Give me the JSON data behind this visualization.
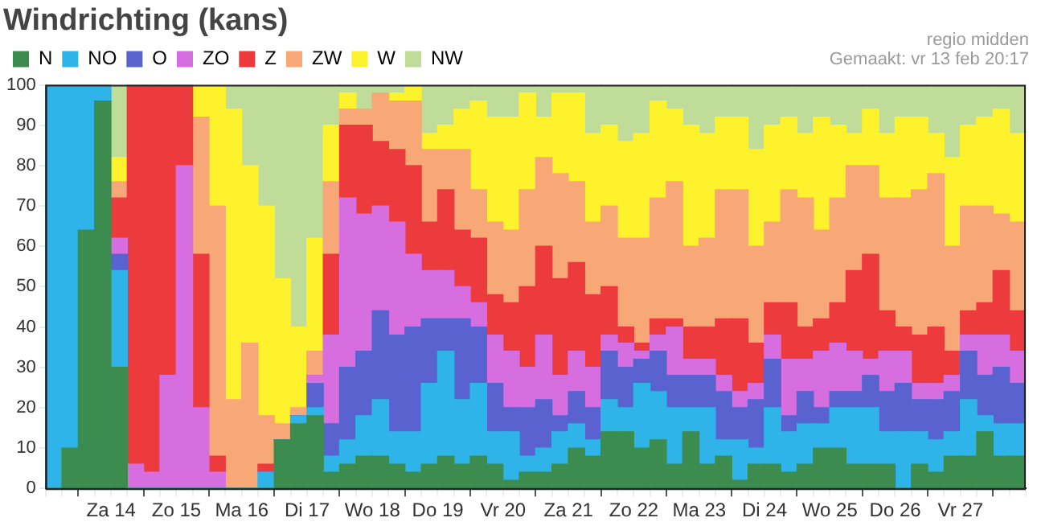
{
  "chart_data": {
    "type": "bar",
    "stacked": true,
    "title": "Windrichting (kans)",
    "annotations": [
      "regio midden",
      "Gemaakt: vr 13 feb 20:17"
    ],
    "categories": [
      null,
      null,
      null,
      null,
      "Za 14",
      null,
      null,
      null,
      "Zo 15",
      null,
      null,
      null,
      "Ma 16",
      null,
      null,
      null,
      "Di 17",
      null,
      null,
      null,
      "Wo 18",
      null,
      null,
      null,
      "Do 19",
      null,
      null,
      null,
      "Vr 20",
      null,
      null,
      null,
      "Za 21",
      null,
      null,
      null,
      "Zo 22",
      null,
      null,
      null,
      "Ma 23",
      null,
      null,
      null,
      "Di 24",
      null,
      null,
      null,
      "Wo 25",
      null,
      null,
      null,
      "Do 26",
      null,
      null,
      null,
      "Vr 27",
      null,
      null,
      null
    ],
    "series": [
      {
        "name": "N",
        "color": "#3d8c4f",
        "values": [
          0,
          10,
          64,
          96,
          30,
          0,
          0,
          0,
          0,
          0,
          0,
          0,
          0,
          0,
          12,
          16,
          18,
          4,
          6,
          8,
          8,
          6,
          4,
          6,
          8,
          6,
          8,
          6,
          2,
          4,
          4,
          6,
          10,
          8,
          14,
          14,
          10,
          12,
          6,
          14,
          6,
          8,
          2,
          6,
          6,
          4,
          6,
          10,
          10,
          6,
          6,
          6,
          0,
          6,
          4,
          8,
          8,
          14,
          8,
          8
        ]
      },
      {
        "name": "NO",
        "color": "#2fb4ea",
        "values": [
          100,
          90,
          36,
          4,
          24,
          0,
          0,
          0,
          0,
          0,
          0,
          0,
          0,
          4,
          0,
          2,
          2,
          4,
          6,
          10,
          14,
          8,
          10,
          20,
          26,
          16,
          18,
          8,
          12,
          4,
          6,
          8,
          6,
          4,
          8,
          6,
          16,
          12,
          14,
          6,
          14,
          4,
          10,
          4,
          14,
          10,
          10,
          6,
          10,
          14,
          14,
          8,
          14,
          8,
          8,
          6,
          14,
          4,
          8,
          8
        ]
      },
      {
        "name": "O",
        "color": "#5a62d0",
        "values": [
          0,
          0,
          0,
          0,
          4,
          0,
          0,
          0,
          0,
          0,
          0,
          0,
          0,
          0,
          0,
          0,
          6,
          8,
          18,
          16,
          22,
          24,
          26,
          16,
          8,
          20,
          14,
          12,
          6,
          12,
          12,
          4,
          8,
          8,
          12,
          10,
          6,
          10,
          8,
          8,
          8,
          12,
          8,
          12,
          12,
          4,
          8,
          4,
          4,
          4,
          8,
          10,
          12,
          8,
          10,
          10,
          12,
          10,
          14,
          10
        ]
      },
      {
        "name": "ZO",
        "color": "#d76ee0",
        "values": [
          0,
          0,
          0,
          0,
          4,
          6,
          4,
          28,
          80,
          20,
          4,
          0,
          0,
          0,
          0,
          0,
          2,
          22,
          42,
          34,
          26,
          28,
          18,
          12,
          12,
          8,
          6,
          12,
          14,
          10,
          16,
          10,
          10,
          10,
          4,
          6,
          2,
          4,
          12,
          4,
          4,
          4,
          4,
          4,
          6,
          14,
          8,
          14,
          12,
          10,
          4,
          10,
          8,
          4,
          4,
          4,
          4,
          10,
          8,
          8
        ]
      },
      {
        "name": "Z",
        "color": "#ec3a3d",
        "values": [
          0,
          0,
          0,
          0,
          10,
          94,
          96,
          72,
          20,
          38,
          4,
          0,
          0,
          2,
          0,
          0,
          0,
          20,
          18,
          22,
          16,
          18,
          22,
          12,
          20,
          14,
          16,
          10,
          12,
          20,
          22,
          24,
          22,
          18,
          12,
          4,
          2,
          4,
          2,
          8,
          8,
          14,
          18,
          10,
          8,
          14,
          8,
          8,
          10,
          20,
          26,
          10,
          6,
          12,
          14,
          6,
          6,
          8,
          16,
          10
        ]
      },
      {
        "name": "ZW",
        "color": "#f8a877",
        "values": [
          0,
          0,
          0,
          0,
          4,
          0,
          0,
          0,
          0,
          34,
          62,
          22,
          36,
          12,
          4,
          2,
          6,
          18,
          4,
          4,
          12,
          12,
          16,
          18,
          10,
          20,
          12,
          18,
          18,
          24,
          22,
          26,
          20,
          18,
          20,
          22,
          26,
          30,
          34,
          20,
          22,
          32,
          32,
          24,
          20,
          28,
          32,
          22,
          26,
          26,
          22,
          28,
          32,
          36,
          38,
          26,
          26,
          24,
          14,
          22
        ]
      },
      {
        "name": "W",
        "color": "#fef22c",
        "values": [
          0,
          0,
          0,
          0,
          6,
          0,
          0,
          0,
          0,
          8,
          30,
          72,
          44,
          52,
          36,
          20,
          28,
          14,
          4,
          0,
          0,
          2,
          4,
          4,
          6,
          10,
          22,
          26,
          28,
          24,
          10,
          20,
          22,
          22,
          20,
          24,
          26,
          24,
          18,
          30,
          26,
          18,
          18,
          24,
          24,
          18,
          16,
          28,
          18,
          8,
          14,
          16,
          20,
          18,
          10,
          22,
          20,
          22,
          26,
          22
        ]
      },
      {
        "name": "NW",
        "color": "#bfdc98",
        "values": [
          0,
          0,
          0,
          0,
          18,
          0,
          0,
          0,
          0,
          0,
          0,
          6,
          20,
          30,
          48,
          60,
          38,
          10,
          2,
          6,
          2,
          2,
          0,
          12,
          10,
          6,
          4,
          8,
          8,
          2,
          8,
          2,
          2,
          12,
          10,
          14,
          12,
          4,
          6,
          10,
          12,
          8,
          8,
          16,
          10,
          8,
          12,
          8,
          10,
          12,
          6,
          12,
          8,
          8,
          12,
          18,
          10,
          8,
          6,
          12
        ]
      }
    ],
    "ylim": [
      0,
      100
    ],
    "yticks": [
      0,
      10,
      20,
      30,
      40,
      50,
      60,
      70,
      80,
      90,
      100
    ],
    "grid": true,
    "legend": "top left"
  }
}
